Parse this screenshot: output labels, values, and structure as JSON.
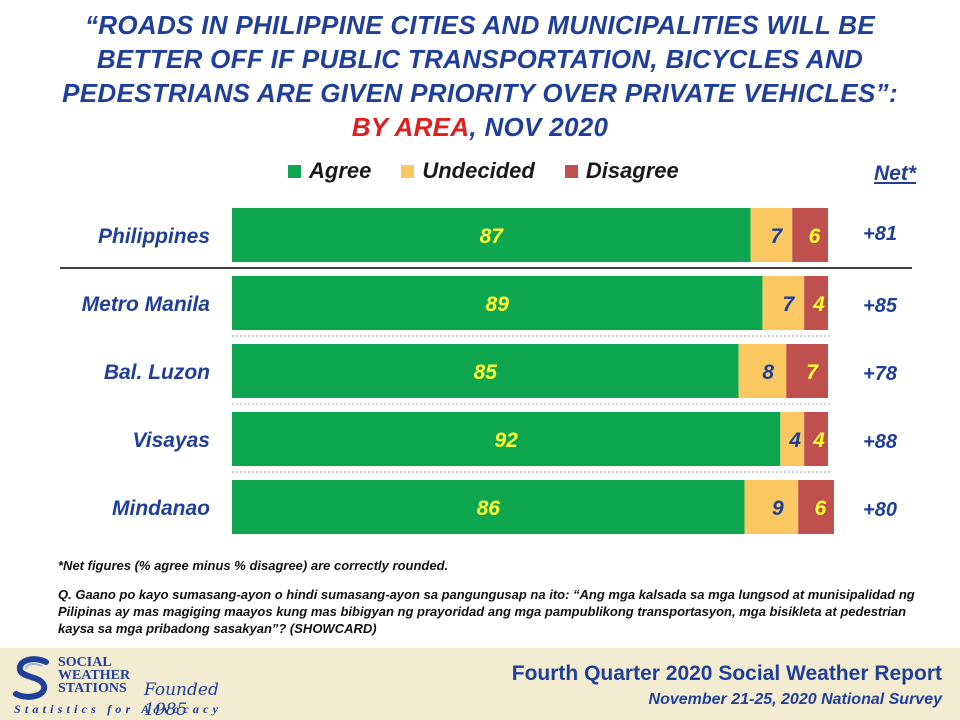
{
  "title": {
    "line1": "“ROADS IN PHILIPPINE CITIES AND MUNICIPALITIES WILL BE",
    "line2": "BETTER OFF IF PUBLIC TRANSPORTATION, BICYCLES AND",
    "line3": "PEDESTRIANS ARE GIVEN PRIORITY OVER PRIVATE VEHICLES”:",
    "by_area": "BY AREA",
    "date": ", NOV 2020"
  },
  "net_header": "Net*",
  "footnote": "*Net figures (% agree minus % disagree) are correctly rounded.",
  "question": "Q. Gaano po kayo sumasang-ayon o hindi sumasang-ayon sa pangungusap na ito: “Ang mga kalsada sa mga lungsod at munisipalidad ng Pilipinas ay mas magiging maayos kung mas bibigyan ng prayoridad ang mga pampublikong transportasyon, mga bisikleta at pedestrian kaysa sa mga pribadong sasakyan”? (SHOWCARD)",
  "footer": {
    "logo_line1": "SOCIAL",
    "logo_line2": "WEATHER",
    "logo_line3": "STATIONS",
    "founded": "Founded 1985",
    "tagline": "Statistics for Advocacy",
    "report_title": "Fourth Quarter 2020 Social Weather Report",
    "report_subtitle": "November 21-25, 2020 National Survey"
  },
  "colors": {
    "agree": "#0fa650",
    "undecided": "#fac760",
    "disagree": "#c0504d",
    "title": "#1f3f9a",
    "highlight": "#e01e1e",
    "agree_label": "#ffff33",
    "undecided_label": "#1f3f9a",
    "disagree_label": "#ffff33"
  },
  "chart_data": {
    "type": "bar",
    "orientation": "horizontal",
    "stacked": true,
    "categories": [
      "Philippines",
      "Metro Manila",
      "Bal. Luzon",
      "Visayas",
      "Mindanao"
    ],
    "series": [
      {
        "name": "Agree",
        "values": [
          87,
          89,
          85,
          92,
          86
        ]
      },
      {
        "name": "Undecided",
        "values": [
          7,
          7,
          8,
          4,
          9
        ]
      },
      {
        "name": "Disagree",
        "values": [
          6,
          4,
          7,
          4,
          6
        ]
      }
    ],
    "net": [
      "+81",
      "+85",
      "+78",
      "+88",
      "+80"
    ],
    "xlim": [
      0,
      100
    ],
    "legend_position": "top",
    "grid": false
  }
}
